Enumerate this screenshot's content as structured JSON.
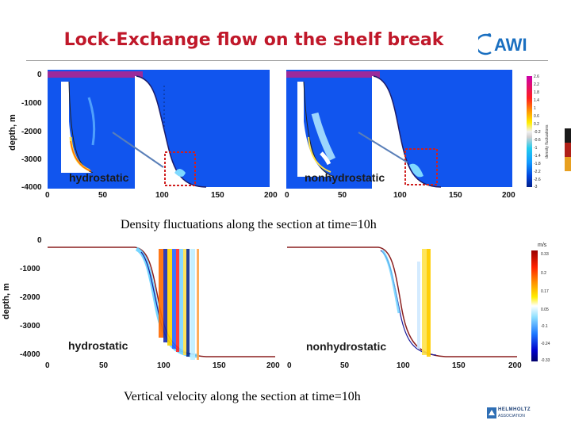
{
  "title": "Lock-Exchange flow on the shelf break",
  "logo_text": "AWI",
  "top": {
    "ylabel": "depth, m",
    "yticks": [
      "0",
      "-1000",
      "-2000",
      "-3000",
      "-4000"
    ],
    "xticks": [
      "0",
      "50",
      "100",
      "150",
      "200"
    ],
    "left_label": "hydrostatic",
    "right_label": "nonhydrostatic",
    "caption": "Density fluctuations along the section at time=10h",
    "colorbar_ticks": [
      "2.6",
      "2.2",
      "1.8",
      "1.4",
      "1",
      "0.6",
      "0.2",
      "-0.2",
      "-0.6",
      "-1",
      "-1.4",
      "-1.8",
      "-2.2",
      "-2.6",
      "-3"
    ],
    "colorbar_title": "density fluctuations"
  },
  "bottom": {
    "ylabel": "depth, m",
    "yticks": [
      "0",
      "-1000",
      "-2000",
      "-3000",
      "-4000"
    ],
    "xticks": [
      "0",
      "50",
      "100",
      "150",
      "200"
    ],
    "left_label": "hydrostatic",
    "right_label": "nonhydrostatic",
    "caption": "Vertical velocity along the section at time=10h",
    "colorbar_unit": "m/s",
    "colorbar_ticks": [
      "0.33",
      "0.2",
      "0.17",
      "0.05",
      "-0.1",
      "-0.24",
      "-0.33"
    ]
  },
  "helmholtz": {
    "line1": "HELMHOLTZ",
    "line2": "ASSOCIATION"
  },
  "colors": {
    "title": "#c0182a",
    "ocean": "#1155ee",
    "shelf_top": "#9b2a9b"
  }
}
